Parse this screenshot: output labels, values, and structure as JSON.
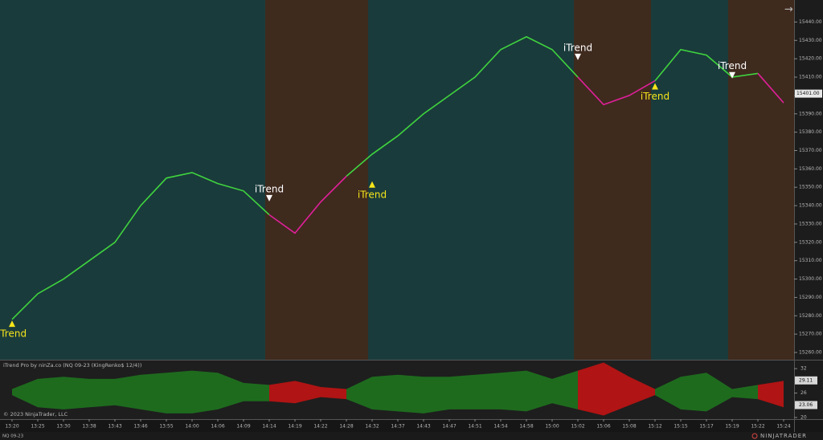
{
  "chart_data": [
    {
      "type": "line",
      "categories": [
        "13:20",
        "13:25",
        "13:30",
        "13:38",
        "13:43",
        "13:46",
        "13:55",
        "14:00",
        "14:06",
        "14:09",
        "14:14",
        "14:19",
        "14:22",
        "14:28",
        "14:32",
        "14:37",
        "14:43",
        "14:47",
        "14:51",
        "14:54",
        "14:58",
        "15:00",
        "15:02",
        "15:06",
        "15:08",
        "15:12",
        "15:15",
        "15:17",
        "15:19",
        "15:22",
        "15:24"
      ],
      "series": [
        {
          "color": "#3fd43f",
          "values": [
            15278,
            15292,
            15300,
            15310,
            15320,
            15340,
            15355,
            15358,
            15352,
            15348,
            15335,
            null,
            null,
            15356,
            15368,
            15378,
            15390,
            15400,
            15410,
            15425,
            15432,
            15425,
            15410,
            null,
            null,
            15408,
            15425,
            15422,
            15410,
            15412,
            null
          ]
        },
        {
          "color": "#e0209a",
          "values": [
            null,
            null,
            null,
            null,
            null,
            null,
            null,
            null,
            null,
            null,
            15335,
            15325,
            15342,
            15356,
            null,
            null,
            null,
            null,
            null,
            null,
            null,
            null,
            15410,
            15395,
            15400,
            15408,
            null,
            null,
            null,
            15412,
            15396
          ]
        }
      ],
      "background_color": "#1a3b3b",
      "regions": [
        {
          "from": "14:14",
          "to": "14:32",
          "color": "#3f2a1e"
        },
        {
          "from": "15:02",
          "to": "15:12",
          "color": "#3f2a1e"
        },
        {
          "from": "15:19",
          "to": "15:24",
          "color": "#3f2a1e"
        }
      ],
      "annotations": [
        {
          "text": "iTrend",
          "x": "13:20",
          "value": 15275.7,
          "direction": "up",
          "color": "#f5e51a"
        },
        {
          "text": "iTrend",
          "x": "14:14",
          "value": 15344,
          "direction": "down",
          "color": "#ffffff"
        },
        {
          "text": "iTrend",
          "x": "14:32",
          "value": 15351.5,
          "direction": "up",
          "color": "#f5e51a"
        },
        {
          "text": "iTrend",
          "x": "15:02",
          "value": 15421,
          "direction": "down",
          "color": "#ffffff"
        },
        {
          "text": "iTrend",
          "x": "15:12",
          "value": 15405,
          "direction": "up",
          "color": "#f5e51a"
        },
        {
          "text": "iTrend",
          "x": "15:19",
          "value": 15411,
          "direction": "down",
          "color": "#ffffff"
        }
      ],
      "last_price": {
        "value": 15401,
        "label": "15401.00"
      },
      "ylim": [
        15256.5,
        15452
      ],
      "yticks": [
        {
          "value": 15260,
          "label": "15260.00"
        },
        {
          "value": 15270,
          "label": "15270.00"
        },
        {
          "value": 15280,
          "label": "15280.00"
        },
        {
          "value": 15290,
          "label": "15290.00"
        },
        {
          "value": 15300,
          "label": "15300.00"
        },
        {
          "value": 15310,
          "label": "15310.00"
        },
        {
          "value": 15320,
          "label": "15320.00"
        },
        {
          "value": 15330,
          "label": "15330.00"
        },
        {
          "value": 15340,
          "label": "15340.00"
        },
        {
          "value": 15350,
          "label": "15350.00"
        },
        {
          "value": 15360,
          "label": "15360.00"
        },
        {
          "value": 15370,
          "label": "15370.00"
        },
        {
          "value": 15380,
          "label": "15380.00"
        },
        {
          "value": 15390,
          "label": "15390.00"
        },
        {
          "value": 15400,
          "label": "15400.00"
        },
        {
          "value": 15410,
          "label": "15410.00"
        },
        {
          "value": 15420,
          "label": "15420.00"
        },
        {
          "value": 15430,
          "label": "15430.00"
        },
        {
          "value": 15440,
          "label": "15440.00"
        }
      ]
    },
    {
      "type": "band",
      "title": "iTrend Pro by ninZa.co (NQ 09-23 (KingRenko$ 12/4))",
      "series": [
        {
          "color": "#1e6b1e",
          "upper": [
            27,
            29.5,
            30,
            29.5,
            29.5,
            30.5,
            31,
            31.5,
            31,
            28.5,
            28,
            null,
            null,
            27,
            30,
            30.5,
            30,
            30,
            30.5,
            31,
            31.5,
            29.5,
            31.5,
            null,
            null,
            27,
            30,
            31,
            27,
            28,
            null
          ],
          "lower": [
            25.5,
            22.5,
            22,
            22.5,
            23,
            22,
            21,
            21,
            22,
            24,
            24,
            null,
            null,
            24.5,
            22,
            21.5,
            21,
            22,
            22,
            22,
            21.5,
            23.5,
            22,
            null,
            null,
            25.5,
            22,
            21.5,
            25,
            24.5,
            null
          ]
        },
        {
          "color": "#b01414",
          "upper": [
            null,
            null,
            null,
            null,
            null,
            null,
            null,
            null,
            null,
            null,
            28,
            29,
            27.5,
            27,
            null,
            null,
            null,
            null,
            null,
            null,
            null,
            null,
            31.5,
            33.5,
            30,
            27,
            null,
            null,
            null,
            28,
            29
          ],
          "lower": [
            null,
            null,
            null,
            null,
            null,
            null,
            null,
            null,
            null,
            null,
            24,
            23.5,
            25,
            24.5,
            null,
            null,
            null,
            null,
            null,
            null,
            null,
            null,
            22,
            20.5,
            23,
            25.5,
            null,
            null,
            null,
            24.5,
            22.5
          ]
        }
      ],
      "value_boxes": [
        29.11,
        23.06
      ],
      "ylim": [
        19.6,
        34
      ],
      "yticks": [
        20,
        26,
        32
      ]
    }
  ],
  "copyright": "© 2023 NinjaTrader, LLC",
  "instrument": "NQ 09-23",
  "brand": "NINJATRADER"
}
